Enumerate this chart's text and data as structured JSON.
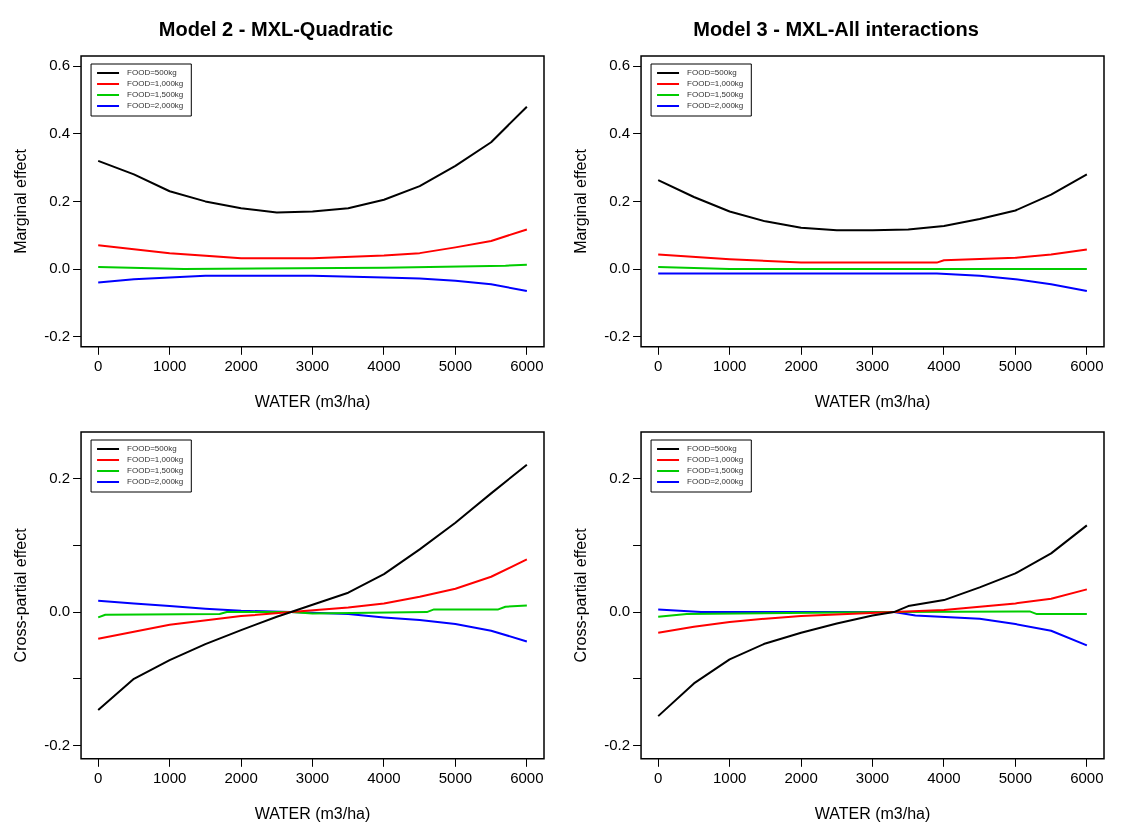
{
  "chart_data": [
    {
      "type": "line",
      "title": "Model 2 - MXL-Quadratic",
      "xlabel": "WATER (m3/ha)",
      "ylabel": "Marginal effect",
      "xlim": [
        -240,
        6240
      ],
      "xticks": [
        0,
        1000,
        2000,
        3000,
        4000,
        5000,
        6000
      ],
      "ylim": [
        -0.23,
        0.63
      ],
      "yticks": [
        -0.2,
        {
          "value": 0,
          "label": "0.0"
        },
        0.2,
        0.4,
        0.6
      ],
      "grid": false,
      "legend": "top left",
      "marker": "none",
      "line_style": "solid",
      "series": [
        {
          "name": "FOOD=500kg",
          "color": "#000000",
          "x": [
            0,
            500,
            1000,
            1500,
            2000,
            2500,
            3000,
            3500,
            4000,
            4500,
            5000,
            5500,
            6000
          ],
          "values": [
            0.32,
            0.28,
            0.23,
            0.2,
            0.18,
            0.167,
            0.17,
            0.18,
            0.205,
            0.245,
            0.305,
            0.375,
            0.48
          ]
        },
        {
          "name": "FOOD=1,000kg",
          "color": "#ff0000",
          "x": [
            0,
            1000,
            2000,
            3000,
            4000,
            4500,
            5000,
            5500,
            6000
          ],
          "values": [
            0.07,
            0.047,
            0.032,
            0.032,
            0.04,
            0.047,
            0.064,
            0.083,
            0.117
          ]
        },
        {
          "name": "FOOD=1,500kg",
          "color": "#00cc00",
          "x": [
            0,
            1200,
            4000,
            5700,
            6000
          ],
          "values": [
            0.006,
            0.0,
            0.004,
            0.01,
            0.013
          ]
        },
        {
          "name": "FOOD=2,000kg",
          "color": "#0000ff",
          "x": [
            0,
            500,
            1000,
            1500,
            3000,
            4000,
            4500,
            5000,
            5500,
            6000
          ],
          "values": [
            -0.04,
            -0.03,
            -0.025,
            -0.02,
            -0.02,
            -0.025,
            -0.028,
            -0.035,
            -0.045,
            -0.065
          ]
        }
      ]
    },
    {
      "type": "line",
      "title": "Model 3 - MXL-All interactions",
      "xlabel": "WATER (m3/ha)",
      "ylabel": "Marginal effect",
      "xlim": [
        -240,
        6240
      ],
      "xticks": [
        0,
        1000,
        2000,
        3000,
        4000,
        5000,
        6000
      ],
      "ylim": [
        -0.23,
        0.63
      ],
      "yticks": [
        -0.2,
        {
          "value": 0,
          "label": "0.0"
        },
        0.2,
        0.4,
        0.6
      ],
      "grid": false,
      "legend": "top left",
      "marker": "none",
      "line_style": "solid",
      "series": [
        {
          "name": "FOOD=500kg",
          "color": "#000000",
          "x": [
            0,
            500,
            1000,
            1500,
            2000,
            2500,
            3000,
            3500,
            4000,
            4500,
            5000,
            5500,
            6000
          ],
          "values": [
            0.263,
            0.213,
            0.17,
            0.141,
            0.122,
            0.115,
            0.115,
            0.117,
            0.127,
            0.148,
            0.173,
            0.22,
            0.28
          ]
        },
        {
          "name": "FOOD=1,000kg",
          "color": "#ff0000",
          "x": [
            0,
            1000,
            2000,
            3000,
            3900,
            4000,
            5000,
            5500,
            6000
          ],
          "values": [
            0.043,
            0.029,
            0.019,
            0.019,
            0.019,
            0.026,
            0.033,
            0.043,
            0.058
          ]
        },
        {
          "name": "FOOD=1,500kg",
          "color": "#00cc00",
          "x": [
            0,
            1000,
            6000
          ],
          "values": [
            0.006,
            0.0,
            0.0
          ]
        },
        {
          "name": "FOOD=2,000kg",
          "color": "#0000ff",
          "x": [
            0,
            3900,
            4500,
            5000,
            5500,
            6000
          ],
          "values": [
            -0.013,
            -0.013,
            -0.02,
            -0.03,
            -0.045,
            -0.065
          ]
        }
      ]
    },
    {
      "type": "line",
      "xlabel": "WATER (m3/ha)",
      "ylabel": "Cross-partial effect",
      "xlim": [
        -240,
        6240
      ],
      "xticks": [
        0,
        1000,
        2000,
        3000,
        4000,
        5000,
        6000
      ],
      "ylim": [
        -0.22,
        0.27
      ],
      "yticks": [
        -0.2,
        {
          "value": -0.1,
          "label": null
        },
        {
          "value": 0,
          "label": "0.0"
        },
        {
          "value": 0.1,
          "label": null
        },
        0.2
      ],
      "grid": false,
      "legend": "top left",
      "marker": "none",
      "line_style": "solid",
      "series": [
        {
          "name": "FOOD=500kg",
          "color": "#000000",
          "x": [
            0,
            500,
            1000,
            1500,
            2000,
            2500,
            2700,
            3000,
            3500,
            4000,
            4500,
            5000,
            5500,
            6000
          ],
          "values": [
            -0.147,
            -0.1,
            -0.072,
            -0.048,
            -0.027,
            -0.007,
            0.0,
            0.011,
            0.029,
            0.057,
            0.094,
            0.134,
            0.178,
            0.221
          ]
        },
        {
          "name": "FOOD=1,000kg",
          "color": "#ff0000",
          "x": [
            0,
            1000,
            2000,
            2700,
            3500,
            4000,
            4500,
            5000,
            5500,
            6000
          ],
          "values": [
            -0.04,
            -0.019,
            -0.006,
            0.0,
            0.007,
            0.013,
            0.023,
            0.035,
            0.053,
            0.079
          ]
        },
        {
          "name": "FOOD=1,500kg",
          "color": "#00cc00",
          "x": [
            0,
            100,
            1700,
            1800,
            2700,
            3000,
            4600,
            4700,
            5600,
            5700,
            6000
          ],
          "values": [
            -0.008,
            -0.004,
            -0.003,
            0.0,
            0.0,
            -0.002,
            0.0,
            0.004,
            0.004,
            0.008,
            0.01
          ]
        },
        {
          "name": "FOOD=2,000kg",
          "color": "#0000ff",
          "x": [
            0,
            500,
            1000,
            1500,
            2000,
            2700,
            3500,
            4000,
            4500,
            5000,
            5500,
            6000
          ],
          "values": [
            0.017,
            0.013,
            0.009,
            0.005,
            0.002,
            0.0,
            -0.003,
            -0.008,
            -0.012,
            -0.018,
            -0.028,
            -0.044
          ]
        }
      ]
    },
    {
      "type": "line",
      "xlabel": "WATER (m3/ha)",
      "ylabel": "Cross-partial effect",
      "xlim": [
        -240,
        6240
      ],
      "xticks": [
        0,
        1000,
        2000,
        3000,
        4000,
        5000,
        6000
      ],
      "ylim": [
        -0.22,
        0.27
      ],
      "yticks": [
        -0.2,
        {
          "value": -0.1,
          "label": null
        },
        {
          "value": 0,
          "label": "0.0"
        },
        {
          "value": 0.1,
          "label": null
        },
        0.2
      ],
      "grid": false,
      "legend": "top left",
      "marker": "none",
      "line_style": "solid",
      "series": [
        {
          "name": "FOOD=500kg",
          "color": "#000000",
          "x": [
            0,
            500,
            1000,
            1500,
            2000,
            2500,
            3000,
            3300,
            3500,
            4000,
            4500,
            5000,
            5500,
            6000
          ],
          "values": [
            -0.156,
            -0.107,
            -0.071,
            -0.047,
            -0.031,
            -0.017,
            -0.005,
            0.0,
            0.009,
            0.018,
            0.037,
            0.058,
            0.088,
            0.13
          ]
        },
        {
          "name": "FOOD=1,000kg",
          "color": "#ff0000",
          "x": [
            0,
            500,
            1000,
            1500,
            2000,
            3300,
            4000,
            4500,
            5000,
            5500,
            6000
          ],
          "values": [
            -0.031,
            -0.022,
            -0.015,
            -0.01,
            -0.006,
            0.0,
            0.003,
            0.008,
            0.013,
            0.02,
            0.034
          ]
        },
        {
          "name": "FOOD=1,500kg",
          "color": "#00cc00",
          "x": [
            0,
            400,
            3300,
            5200,
            5300,
            6000
          ],
          "values": [
            -0.007,
            -0.003,
            0.0,
            0.001,
            -0.003,
            -0.003
          ]
        },
        {
          "name": "FOOD=2,000kg",
          "color": "#0000ff",
          "x": [
            0,
            600,
            3300,
            3600,
            4500,
            5000,
            5500,
            6000
          ],
          "values": [
            0.004,
            0.0,
            0.0,
            -0.005,
            -0.01,
            -0.018,
            -0.028,
            -0.05
          ]
        }
      ]
    }
  ]
}
